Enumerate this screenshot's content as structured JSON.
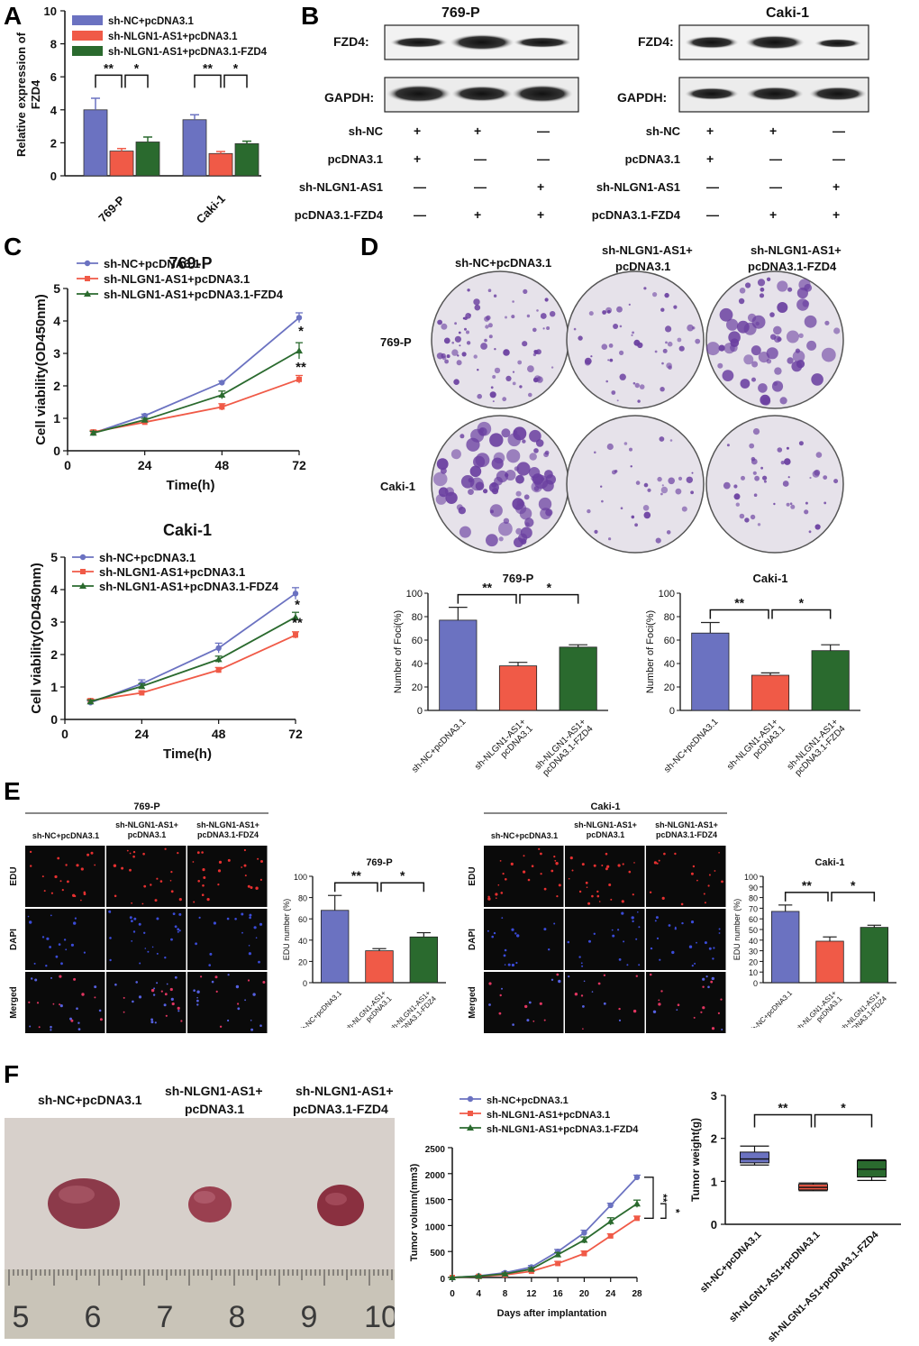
{
  "panel_labels": {
    "A": "A",
    "B": "B",
    "C": "C",
    "D": "D",
    "E": "E",
    "F": "F"
  },
  "colors": {
    "blue": "#6b72c1",
    "red": "#f05a47",
    "green": "#2a6a2e",
    "dark": "#111111"
  },
  "panelA": {
    "chart_data": {
      "type": "bar",
      "ylabel_lines": [
        "Relative expression of",
        "FZD4"
      ],
      "categories": [
        "769-P",
        "Caki-1"
      ],
      "series": [
        {
          "name": "sh-NC+pcDNA3.1",
          "values": [
            4.0,
            3.4
          ],
          "err": [
            0.7,
            0.3
          ]
        },
        {
          "name": "sh-NLGN1-AS1+pcDNA3.1",
          "values": [
            1.5,
            1.35
          ],
          "err": [
            0.15,
            0.12
          ]
        },
        {
          "name": "sh-NLGN1-AS1+pcDNA3.1-FZD4",
          "values": [
            2.05,
            1.95
          ],
          "err": [
            0.3,
            0.15
          ]
        }
      ],
      "ylim": [
        0,
        10
      ],
      "yticks": [
        "0",
        "2",
        "4",
        "6",
        "8",
        "10"
      ],
      "sig": [
        "**",
        "*",
        "**",
        "*"
      ]
    }
  },
  "panelB": {
    "blots": [
      {
        "cell": "769-P",
        "protein1": "FZD4:",
        "protein2": "GAPDH:"
      },
      {
        "cell": "Caki-1",
        "protein1": "FZD4:",
        "protein2": "GAPDH:"
      }
    ],
    "rows": [
      {
        "label": "sh-NC",
        "marks": [
          "+",
          "+",
          "—"
        ]
      },
      {
        "label": "pcDNA3.1",
        "marks": [
          "+",
          "—",
          "—"
        ]
      },
      {
        "label": "sh-NLGN1-AS1",
        "marks": [
          "—",
          "—",
          "+"
        ]
      },
      {
        "label": "pcDNA3.1-FZD4",
        "marks": [
          "—",
          "+",
          "+"
        ]
      }
    ]
  },
  "panelC": {
    "chart_data": [
      {
        "type": "line",
        "title": "769-P",
        "xlabel": "Time(h)",
        "ylabel": "Cell viability(OD450nm)",
        "x": [
          8,
          24,
          48,
          72
        ],
        "xticks": [
          "0",
          "24",
          "48",
          "72"
        ],
        "xlim": [
          0,
          72
        ],
        "ylim": [
          0,
          5
        ],
        "yticks": [
          "0",
          "1",
          "2",
          "3",
          "4",
          "5"
        ],
        "series": [
          {
            "name": "sh-NC+pcDNA3.1",
            "values": [
              0.55,
              1.08,
              2.1,
              4.1
            ],
            "err": [
              0.05,
              0.05,
              0.05,
              0.15
            ]
          },
          {
            "name": "sh-NLGN1-AS1+pcDNA3.1",
            "values": [
              0.58,
              0.88,
              1.35,
              2.2
            ],
            "err": [
              0.05,
              0.05,
              0.1,
              0.12
            ]
          },
          {
            "name": "sh-NLGN1-AS1+pcDNA3.1-FZD4",
            "values": [
              0.55,
              0.95,
              1.72,
              3.08
            ],
            "err": [
              0.05,
              0.05,
              0.12,
              0.25
            ]
          }
        ],
        "sig": [
          "*",
          "**"
        ]
      },
      {
        "type": "line",
        "title": "Caki-1",
        "xlabel": "Time(h)",
        "ylabel": "Cell viability(OD450nm)",
        "x": [
          8,
          24,
          48,
          72
        ],
        "xticks": [
          "0",
          "24",
          "48",
          "72"
        ],
        "xlim": [
          0,
          72
        ],
        "ylim": [
          0,
          5
        ],
        "yticks": [
          "0",
          "1",
          "2",
          "3",
          "4",
          "5"
        ],
        "series": [
          {
            "name": "sh-NC+pcDNA3.1",
            "values": [
              0.52,
              1.1,
              2.2,
              3.88
            ],
            "err": [
              0.05,
              0.12,
              0.15,
              0.18
            ]
          },
          {
            "name": "sh-NLGN1-AS1+pcDNA3.1",
            "values": [
              0.58,
              0.82,
              1.52,
              2.6
            ],
            "err": [
              0.05,
              0.05,
              0.08,
              0.1
            ]
          },
          {
            "name": "sh-NLGN1-AS1+pcDNA3.1-FDZ4",
            "values": [
              0.55,
              1.02,
              1.85,
              3.15
            ],
            "err": [
              0.05,
              0.08,
              0.1,
              0.15
            ]
          }
        ],
        "sig": [
          "*",
          "**"
        ]
      }
    ]
  },
  "panelD": {
    "col_labels": [
      [
        "sh-NC+pcDNA3.1"
      ],
      [
        "sh-NLGN1-AS1+",
        "pcDNA3.1"
      ],
      [
        "sh-NLGN1-AS1+",
        "pcDNA3.1-FZD4"
      ]
    ],
    "row_labels": [
      "769-P",
      "Caki-1"
    ],
    "chart_data": [
      {
        "type": "bar",
        "title": "769-P",
        "ylabel": "Number of Foci(%)",
        "categories": [
          "sh-NC+pcDNA3.1",
          "sh-NLGN1-AS1+ pcDNA3.1",
          "sh-NLGN1-AS1+ pcDNA3.1-FZD4"
        ],
        "values": [
          77,
          38,
          54
        ],
        "err": [
          11,
          3,
          2
        ],
        "ylim": [
          0,
          100
        ],
        "yticks": [
          "0",
          "20",
          "40",
          "60",
          "80",
          "100"
        ],
        "sig": [
          "**",
          "*"
        ]
      },
      {
        "type": "bar",
        "title": "Caki-1",
        "ylabel": "Number of Foci(%)",
        "categories": [
          "sh-NC+pcDNA3.1",
          "sh-NLGN1-AS1+ pcDNA3.1",
          "sh-NLGN1-AS1+ pcDNA3.1-FZD4"
        ],
        "values": [
          66,
          30,
          51
        ],
        "err": [
          9,
          2,
          5
        ],
        "ylim": [
          0,
          100
        ],
        "yticks": [
          "0",
          "20",
          "40",
          "60",
          "80",
          "100"
        ],
        "sig": [
          "**",
          "*"
        ]
      }
    ]
  },
  "panelE": {
    "groups": [
      {
        "cell": "769-P",
        "cols": [
          [
            "sh-NC+pcDNA3.1"
          ],
          [
            "sh-NLGN1-AS1+",
            "pcDNA3.1"
          ],
          [
            "sh-NLGN1-AS1+",
            "pcDNA3.1-FDZ4"
          ]
        ]
      },
      {
        "cell": "Caki-1",
        "cols": [
          [
            "sh-NC+pcDNA3.1"
          ],
          [
            "sh-NLGN1-AS1+",
            "pcDNA3.1"
          ],
          [
            "sh-NLGN1-AS1+",
            "pcDNA3.1-FDZ4"
          ]
        ]
      }
    ],
    "rows": [
      "EDU",
      "DAPI",
      "Merged"
    ],
    "chart_data": [
      {
        "type": "bar",
        "title": "769-P",
        "ylabel": "EDU number (%)",
        "categories": [
          "sh-NC+pcDNA3.1",
          "sh-NLGN1-AS1+ pcDNA3.1",
          "sh-NLGN1-AS1+ pcDNA3.1-FDZ4"
        ],
        "values": [
          68,
          30,
          43
        ],
        "err": [
          14,
          2,
          4
        ],
        "ylim": [
          0,
          100
        ],
        "yticks": [
          "0",
          "20",
          "40",
          "60",
          "80",
          "100"
        ],
        "sig": [
          "**",
          "*"
        ]
      },
      {
        "type": "bar",
        "title": "Caki-1",
        "ylabel": "EDU number (%)",
        "categories": [
          "sh-NC+pcDNA3.1",
          "sh-NLGN1-AS1+ pcDNA3.1",
          "sh-NLGN1-AS1+ pcDNA3.1-FDZ4"
        ],
        "values": [
          67,
          39,
          52
        ],
        "err": [
          6,
          4,
          2
        ],
        "ylim": [
          0,
          100
        ],
        "yticks": [
          "0",
          "10",
          "20",
          "30",
          "40",
          "50",
          "60",
          "70",
          "80",
          "90",
          "100"
        ],
        "sig": [
          "**",
          "*"
        ]
      }
    ]
  },
  "panelF": {
    "photo_labels": [
      [
        "sh-NC+pcDNA3.1"
      ],
      [
        "sh-NLGN1-AS1+",
        "pcDNA3.1"
      ],
      [
        "sh-NLGN1-AS1+",
        "pcDNA3.1-FZD4"
      ]
    ],
    "ruler_numbers": [
      "5",
      "6",
      "7",
      "8",
      "9",
      "10"
    ],
    "volume_chart": {
      "type": "line",
      "xlabel": "Days after implantation",
      "ylabel": "Tumor volumn(mm3)",
      "x": [
        0,
        4,
        8,
        12,
        16,
        20,
        24,
        28
      ],
      "xticks": [
        "0",
        "4",
        "8",
        "12",
        "16",
        "20",
        "24",
        "28"
      ],
      "xlim": [
        0,
        28
      ],
      "ylim": [
        0,
        2500
      ],
      "yticks": [
        "0",
        "500",
        "1000",
        "1500",
        "2000",
        "2500"
      ],
      "series": [
        {
          "name": "sh-NC+pcDNA3.1",
          "values": [
            0,
            30,
            90,
            200,
            500,
            860,
            1390,
            1930
          ],
          "err": [
            5,
            10,
            20,
            30,
            40,
            50,
            40,
            40
          ]
        },
        {
          "name": "sh-NLGN1-AS1+pcDNA3.1",
          "values": [
            0,
            20,
            50,
            120,
            270,
            460,
            800,
            1140
          ],
          "err": [
            5,
            10,
            15,
            20,
            40,
            50,
            40,
            40
          ]
        },
        {
          "name": "sh-NLGN1-AS1+pcDNA3.1-FZD4",
          "values": [
            0,
            25,
            70,
            160,
            440,
            720,
            1080,
            1420
          ],
          "err": [
            5,
            10,
            15,
            25,
            40,
            60,
            70,
            70
          ]
        }
      ],
      "sig": [
        "**",
        "*"
      ]
    },
    "weight_chart": {
      "type": "box",
      "ylabel": "Tumor weight(g)",
      "categories": [
        "sh-NC+pcDNA3.1",
        "sh-NLGN1-AS1+pcDNA3.1",
        "sh-NLGN1-AS1+pcDNA3.1-FZD4"
      ],
      "boxes": [
        {
          "min": 1.38,
          "q1": 1.43,
          "median": 1.52,
          "q3": 1.68,
          "max": 1.82
        },
        {
          "min": 0.78,
          "q1": 0.8,
          "median": 0.86,
          "q3": 0.93,
          "max": 0.96
        },
        {
          "min": 1.02,
          "q1": 1.1,
          "median": 1.28,
          "q3": 1.48,
          "max": 1.5
        }
      ],
      "ylim": [
        0,
        3
      ],
      "yticks": [
        "0",
        "1",
        "2",
        "3"
      ],
      "sig": [
        "**",
        "*"
      ]
    }
  }
}
